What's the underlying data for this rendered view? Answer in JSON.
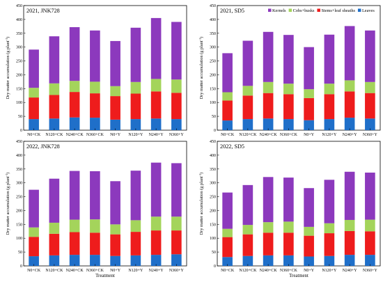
{
  "colors": {
    "Leaves": "#1f6fc9",
    "Stems+leaf sheaths": "#ee1c1c",
    "Cobs+husks": "#a4d45b",
    "Kernels": "#8c39bd"
  },
  "x_axis_title": "Treatment",
  "y_axis_label": "Dry matter accumulation (g plant",
  "y_axis_label_sup": "-1",
  "y_axis_label_end": ")",
  "chart_data": [
    {
      "type": "bar",
      "stacked": true,
      "title": "2021, JNK728",
      "categories": [
        "N0+CK",
        "N120+CK",
        "N240+CK",
        "N360+CK",
        "N0+Y",
        "N120+Y",
        "N240+Y",
        "N360+Y"
      ],
      "ylim": [
        0,
        450
      ],
      "yticks": [
        0,
        50,
        100,
        150,
        200,
        250,
        300,
        350,
        400,
        450
      ],
      "legend": false,
      "series": [
        {
          "name": "Leaves",
          "values": [
            40,
            42,
            46,
            45,
            38,
            40,
            42,
            40
          ]
        },
        {
          "name": "Stems+leaf sheaths",
          "values": [
            78,
            85,
            92,
            88,
            85,
            92,
            98,
            95
          ]
        },
        {
          "name": "Cobs+husks",
          "values": [
            35,
            42,
            40,
            42,
            36,
            42,
            45,
            48
          ]
        },
        {
          "name": "Kernels",
          "values": [
            138,
            170,
            194,
            185,
            163,
            196,
            220,
            208
          ]
        }
      ]
    },
    {
      "type": "bar",
      "stacked": true,
      "title": "2021, SD5",
      "categories": [
        "N0+CK",
        "N120+CK",
        "N240+CK",
        "N360+CK",
        "N0+Y",
        "N120+Y",
        "N240+Y",
        "N360+Y"
      ],
      "ylim": [
        0,
        450
      ],
      "yticks": [
        0,
        50,
        100,
        150,
        200,
        250,
        300,
        350,
        400,
        450
      ],
      "legend": true,
      "legend_position": "top-right",
      "legend_order": [
        "Kernels",
        "Cobs+husks",
        "Stems+leaf sheaths",
        "Leaves"
      ],
      "series": [
        {
          "name": "Leaves",
          "values": [
            35,
            40,
            42,
            40,
            36,
            40,
            45,
            42
          ]
        },
        {
          "name": "Stems+leaf sheaths",
          "values": [
            72,
            85,
            92,
            90,
            80,
            90,
            95,
            92
          ]
        },
        {
          "name": "Cobs+husks",
          "values": [
            30,
            35,
            40,
            38,
            32,
            38,
            40,
            40
          ]
        },
        {
          "name": "Kernels",
          "values": [
            141,
            163,
            181,
            176,
            152,
            177,
            196,
            186
          ]
        }
      ]
    },
    {
      "type": "bar",
      "stacked": true,
      "title": "2022, JNK728",
      "categories": [
        "N0+CK",
        "N120+CK",
        "N240+CK",
        "N360+CK",
        "N0+Y",
        "N120+Y",
        "N240+Y",
        "N360+Y"
      ],
      "ylim": [
        0,
        450
      ],
      "yticks": [
        0,
        50,
        100,
        150,
        200,
        250,
        300,
        350,
        400,
        450
      ],
      "legend": false,
      "series": [
        {
          "name": "Leaves",
          "values": [
            35,
            38,
            40,
            40,
            36,
            38,
            40,
            42
          ]
        },
        {
          "name": "Stems+leaf sheaths",
          "values": [
            70,
            78,
            82,
            80,
            78,
            85,
            88,
            86
          ]
        },
        {
          "name": "Cobs+husks",
          "values": [
            34,
            40,
            45,
            48,
            36,
            42,
            50,
            50
          ]
        },
        {
          "name": "Kernels",
          "values": [
            136,
            159,
            176,
            174,
            156,
            179,
            195,
            193
          ]
        }
      ]
    },
    {
      "type": "bar",
      "stacked": true,
      "title": "2022, SD5",
      "categories": [
        "N0+CK",
        "N120+CK",
        "N240+CK",
        "N360+CK",
        "N0+Y",
        "N120+Y",
        "N240+Y",
        "N360+Y"
      ],
      "ylim": [
        0,
        450
      ],
      "yticks": [
        0,
        50,
        100,
        150,
        200,
        250,
        300,
        350,
        400,
        450
      ],
      "legend": false,
      "series": [
        {
          "name": "Leaves",
          "values": [
            32,
            36,
            38,
            38,
            34,
            36,
            40,
            40
          ]
        },
        {
          "name": "Stems+leaf sheaths",
          "values": [
            72,
            78,
            82,
            82,
            75,
            82,
            86,
            85
          ]
        },
        {
          "name": "Cobs+husks",
          "values": [
            30,
            34,
            38,
            40,
            32,
            36,
            40,
            42
          ]
        },
        {
          "name": "Kernels",
          "values": [
            131,
            144,
            163,
            159,
            140,
            157,
            174,
            170
          ]
        }
      ]
    }
  ]
}
